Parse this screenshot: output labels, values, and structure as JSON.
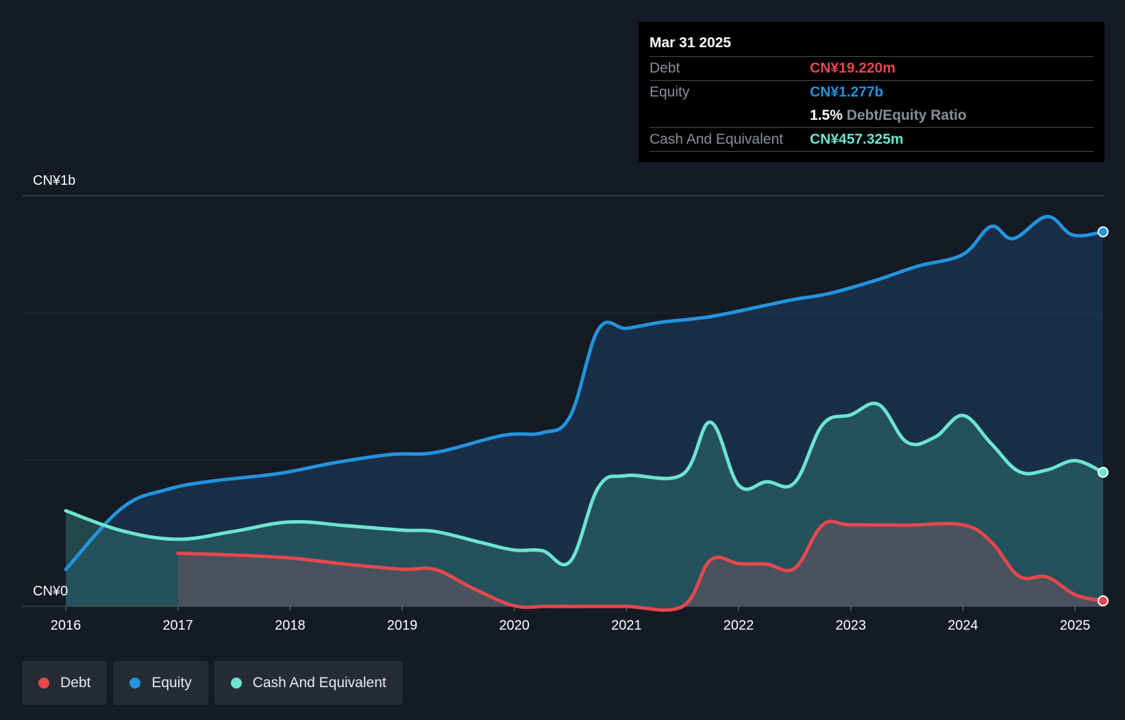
{
  "tooltip": {
    "date": "Mar 31 2025",
    "rows": [
      {
        "label": "Debt",
        "value": "CN¥19.220m",
        "color": "#e5484d"
      },
      {
        "label": "Equity",
        "value": "CN¥1.277b",
        "color": "#2394df"
      }
    ],
    "ratio_value": "1.5%",
    "ratio_label": "Debt/Equity Ratio",
    "cash": {
      "label": "Cash And Equivalent",
      "value": "CN¥457.325m",
      "color": "#6ce5d0"
    }
  },
  "legend": [
    {
      "label": "Debt",
      "color": "#e5484d"
    },
    {
      "label": "Equity",
      "color": "#2394df"
    },
    {
      "label": "Cash And Equivalent",
      "color": "#6ce5d0"
    }
  ],
  "chart_data": {
    "type": "area",
    "y_top_label": "CN¥1b",
    "y_bottom_label": "CN¥0",
    "ylim": [
      0,
      1.4
    ],
    "xlim": [
      2016,
      2025.25
    ],
    "x_tick_labels": [
      "2016",
      "2017",
      "2018",
      "2019",
      "2020",
      "2021",
      "2022",
      "2023",
      "2024",
      "2025"
    ],
    "grid": true,
    "legend_position": "bottom-left",
    "series": [
      {
        "name": "Equity",
        "color": "#2394df",
        "x": [
          2016.0,
          2016.5,
          2016.9,
          2017.3,
          2017.9,
          2018.4,
          2018.9,
          2019.3,
          2019.9,
          2020.25,
          2020.5,
          2020.75,
          2021.0,
          2021.3,
          2021.75,
          2022.2,
          2022.5,
          2022.8,
          2023.2,
          2023.6,
          2024.0,
          2024.25,
          2024.45,
          2024.75,
          2024.98,
          2025.25
        ],
        "y": [
          0.126,
          0.335,
          0.398,
          0.427,
          0.453,
          0.49,
          0.518,
          0.525,
          0.583,
          0.592,
          0.65,
          0.945,
          0.948,
          0.968,
          0.988,
          1.023,
          1.047,
          1.066,
          1.109,
          1.16,
          1.2,
          1.295,
          1.254,
          1.329,
          1.266,
          1.277
        ]
      },
      {
        "name": "Cash And Equivalent",
        "color": "#6ce5d0",
        "x": [
          2016.0,
          2016.5,
          2017.0,
          2017.5,
          2018.0,
          2018.5,
          2019.0,
          2019.3,
          2019.7,
          2020.0,
          2020.25,
          2020.5,
          2020.75,
          2021.0,
          2021.5,
          2021.75,
          2022.0,
          2022.25,
          2022.5,
          2022.75,
          2023.0,
          2023.25,
          2023.5,
          2023.75,
          2024.0,
          2024.25,
          2024.5,
          2024.75,
          2025.0,
          2025.25
        ],
        "y": [
          0.326,
          0.258,
          0.229,
          0.256,
          0.288,
          0.275,
          0.26,
          0.255,
          0.218,
          0.192,
          0.19,
          0.154,
          0.406,
          0.446,
          0.45,
          0.628,
          0.413,
          0.425,
          0.422,
          0.62,
          0.653,
          0.688,
          0.56,
          0.577,
          0.651,
          0.556,
          0.46,
          0.465,
          0.497,
          0.457
        ]
      },
      {
        "name": "Debt",
        "color": "#e5484d",
        "x": [
          2017.0,
          2017.5,
          2018.0,
          2018.5,
          2019.0,
          2019.3,
          2019.65,
          2020.0,
          2020.3,
          2020.7,
          2021.0,
          2021.5,
          2021.75,
          2022.0,
          2022.25,
          2022.5,
          2022.75,
          2023.0,
          2023.5,
          2024.0,
          2024.25,
          2024.5,
          2024.75,
          2025.0,
          2025.25
        ],
        "y": [
          0.181,
          0.175,
          0.165,
          0.144,
          0.127,
          0.125,
          0.058,
          0.002,
          0.0,
          0.0,
          0.0,
          0.0,
          0.158,
          0.146,
          0.144,
          0.13,
          0.278,
          0.278,
          0.277,
          0.278,
          0.221,
          0.103,
          0.1,
          0.04,
          0.019
        ]
      }
    ]
  }
}
